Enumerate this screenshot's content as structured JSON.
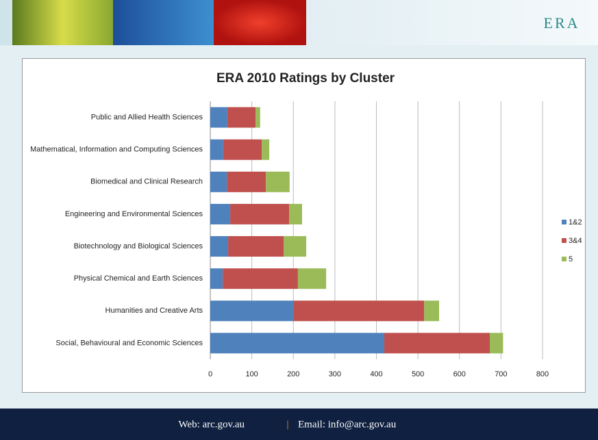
{
  "header": {
    "logo": "ERA"
  },
  "chart_data": {
    "type": "stacked-bar-horizontal",
    "title": "ERA 2010 Ratings by Cluster",
    "categories": [
      "Public and Allied Health Sciences",
      "Mathematical, Information and Computing Sciences",
      "Biomedical and Clinical Research",
      "Engineering and Environmental Sciences",
      "Biotechnology and Biological Sciences",
      "Physical Chemical and Earth Sciences",
      "Humanities and Creative Arts",
      "Social, Behavioural and Economic Sciences"
    ],
    "series": [
      {
        "name": "1&2",
        "color": "#4f81bd",
        "values": [
          41,
          31,
          40,
          48,
          43,
          30,
          200,
          419
        ]
      },
      {
        "name": "3&4",
        "color": "#c0504d",
        "values": [
          68,
          93,
          94,
          142,
          134,
          181,
          315,
          254
        ]
      },
      {
        "name": "5",
        "color": "#9bbb59",
        "values": [
          11,
          18,
          57,
          31,
          54,
          68,
          36,
          32
        ]
      }
    ],
    "xlim": [
      0,
      800
    ],
    "xticks": [
      0,
      100,
      200,
      300,
      400,
      500,
      600,
      700,
      800
    ],
    "grid": true,
    "legend": "right"
  },
  "footer": {
    "web": "Web: arc.gov.au",
    "separator": "|",
    "email": "Email: info@arc.gov.au"
  }
}
